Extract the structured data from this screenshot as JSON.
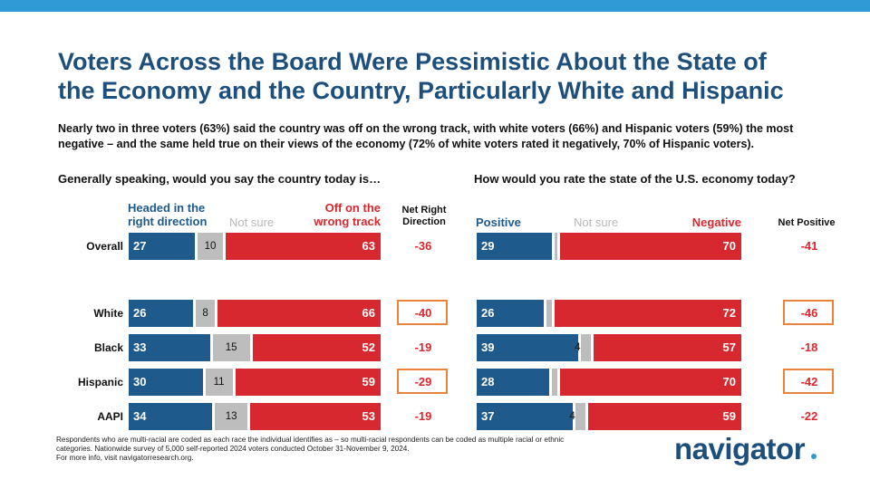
{
  "title_lines": [
    "Voters Across the Board Were Pessimistic About the State of",
    "the Economy and the Country, Particularly White and Hispanic"
  ],
  "subtitle_lines": [
    "Nearly two in three voters (63%) said the country was off on the wrong track, with white voters (66%) and Hispanic voters (59%) the most",
    "negative – and the same held true on their views of the economy (72% of white voters rated it negatively, 70% of Hispanic voters)."
  ],
  "colors": {
    "blue": "#1f5a8c",
    "gray": "#bdbdbd",
    "red": "#d7282f",
    "highlight": "#e9823b",
    "topbar": "#2f9bd6"
  },
  "chart_data": [
    {
      "type": "bar",
      "stacked": true,
      "orientation": "horizontal",
      "title": "Generally speaking, would you say the country today is…",
      "categories": [
        "Overall",
        "White",
        "Black",
        "Hispanic",
        "AAPI"
      ],
      "series": [
        {
          "name_lines": [
            "Headed in the",
            "right direction"
          ],
          "values": [
            27,
            26,
            33,
            30,
            34
          ],
          "color": "#1f5a8c"
        },
        {
          "name_lines": [
            "Not sure"
          ],
          "values": [
            10,
            8,
            15,
            11,
            13
          ],
          "color": "#bdbdbd"
        },
        {
          "name_lines": [
            "Off on the",
            "wrong track"
          ],
          "values": [
            63,
            66,
            52,
            59,
            53
          ],
          "color": "#d7282f"
        }
      ],
      "net_label_lines": [
        "Net Right",
        "Direction"
      ],
      "net_values": [
        "-36",
        "-40",
        "-19",
        "-29",
        "-19"
      ],
      "net_highlight": [
        false,
        true,
        false,
        true,
        false
      ]
    },
    {
      "type": "bar",
      "stacked": true,
      "orientation": "horizontal",
      "title": "How would you rate the state of the U.S. economy today?",
      "categories": [
        "Overall",
        "White",
        "Black",
        "Hispanic",
        "AAPI"
      ],
      "series": [
        {
          "name_lines": [
            "Positive"
          ],
          "values": [
            29,
            26,
            39,
            28,
            37
          ],
          "color": "#1f5a8c"
        },
        {
          "name_lines": [
            "Not sure"
          ],
          "values": [
            1,
            2,
            4,
            2,
            4
          ],
          "value_labels": [
            "",
            "",
            "4",
            "",
            "4"
          ],
          "color": "#bdbdbd"
        },
        {
          "name_lines": [
            "Negative"
          ],
          "values": [
            70,
            72,
            57,
            70,
            59
          ],
          "color": "#d7282f"
        }
      ],
      "net_label_lines": [
        "Net Positive"
      ],
      "net_values": [
        "-41",
        "-46",
        "-18",
        "-42",
        "-22"
      ],
      "net_highlight": [
        false,
        true,
        false,
        true,
        false
      ]
    }
  ],
  "footnote_lines": [
    "Respondents who are multi-racial are coded as each race the individual identifies as – so multi-racial respondents can be coded as multiple racial or ethnic",
    "categories. Nationwide survey of 5,000 self-reported 2024 voters conducted October 31-November 9, 2024.",
    "For more info, visit navigatorresearch.org."
  ],
  "logo_text": "navigator"
}
